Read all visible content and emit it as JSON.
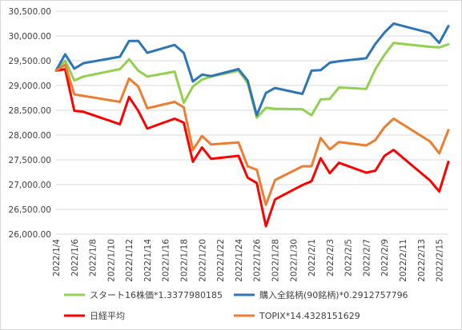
{
  "chart_data": {
    "type": "line",
    "x": [
      "2022/1/4",
      "2022/1/5",
      "2022/1/6",
      "2022/1/7",
      "2022/1/11",
      "2022/1/12",
      "2022/1/13",
      "2022/1/14",
      "2022/1/17",
      "2022/1/18",
      "2022/1/19",
      "2022/1/20",
      "2022/1/21",
      "2022/1/24",
      "2022/1/25",
      "2022/1/26",
      "2022/1/27",
      "2022/1/28",
      "2022/1/31",
      "2022/2/1",
      "2022/2/2",
      "2022/2/3",
      "2022/2/4",
      "2022/2/7",
      "2022/2/8",
      "2022/2/9",
      "2022/2/10",
      "2022/2/14",
      "2022/2/15",
      "2022/2/16"
    ],
    "x_ticks": [
      "2022/1/4",
      "2022/1/6",
      "2022/1/8",
      "2022/1/10",
      "2022/1/12",
      "2022/1/14",
      "2022/1/16",
      "2022/1/18",
      "2022/1/20",
      "2022/1/22",
      "2022/1/24",
      "2022/1/26",
      "2022/1/28",
      "2022/1/30",
      "2022/2/1",
      "2022/2/3",
      "2022/2/5",
      "2022/2/7",
      "2022/2/9",
      "2022/2/11",
      "2022/2/13",
      "2022/2/15"
    ],
    "y_ticks": [
      "26,000.00",
      "26,500.00",
      "27,000.00",
      "27,500.00",
      "28,000.00",
      "28,500.00",
      "29,000.00",
      "29,500.00",
      "30,000.00",
      "30,500.00"
    ],
    "ylim": [
      26000,
      30500
    ],
    "grid": true,
    "legend_position": "bottom",
    "series": [
      {
        "name": "スタート16株価*1.3377980185",
        "color": "#92d050",
        "values": [
          29300,
          29500,
          29100,
          29180,
          29330,
          29530,
          29300,
          29180,
          29280,
          28650,
          28980,
          29120,
          29180,
          29300,
          29050,
          28350,
          28550,
          28530,
          28520,
          28400,
          28720,
          28730,
          28960,
          28930,
          29330,
          29620,
          29860,
          29780,
          29770,
          29830
        ]
      },
      {
        "name": "購入全銘柄(90銘柄)*0.2912757796",
        "color": "#2e75b6",
        "values": [
          29300,
          29630,
          29340,
          29450,
          29580,
          29900,
          29900,
          29660,
          29820,
          29660,
          29080,
          29220,
          29190,
          29330,
          29100,
          28400,
          28850,
          28950,
          28830,
          29300,
          29310,
          29460,
          29490,
          29550,
          29840,
          30070,
          30250,
          30060,
          29860,
          30200
        ]
      },
      {
        "name": "日経平均",
        "color": "#ff0000",
        "values": [
          29300,
          29330,
          28490,
          28470,
          28220,
          28770,
          28490,
          28130,
          28330,
          28250,
          27460,
          27750,
          27520,
          27580,
          27140,
          27030,
          26160,
          26700,
          26990,
          27070,
          27530,
          27230,
          27440,
          27240,
          27280,
          27580,
          27700,
          27080,
          26860,
          27460
        ]
      },
      {
        "name": "TOPIX*14.4328151629",
        "color": "#ed7d31",
        "values": [
          29300,
          29420,
          28820,
          28790,
          28670,
          29140,
          28980,
          28540,
          28670,
          28560,
          27700,
          27980,
          27810,
          27850,
          27370,
          27300,
          26590,
          27090,
          27370,
          27370,
          27940,
          27710,
          27860,
          27790,
          27900,
          28160,
          28330,
          27870,
          27630,
          28100
        ]
      }
    ]
  }
}
